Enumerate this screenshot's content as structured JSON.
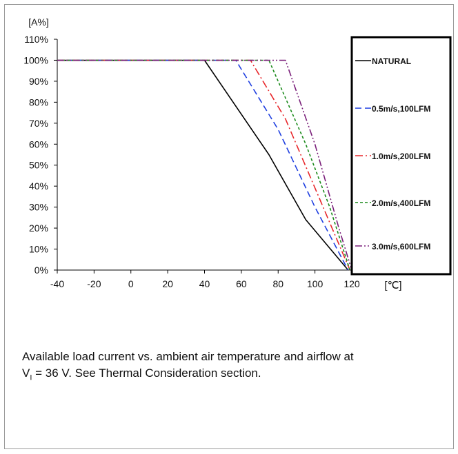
{
  "chart_data": {
    "type": "line",
    "title": "",
    "ylabel": "[A%]",
    "xlabel": "[℃]",
    "xlim": [
      -40,
      120
    ],
    "ylim": [
      0,
      110
    ],
    "x_ticks": [
      -40,
      -20,
      0,
      20,
      40,
      60,
      80,
      100,
      120
    ],
    "y_ticks": [
      "0%",
      "10%",
      "20%",
      "30%",
      "40%",
      "50%",
      "60%",
      "70%",
      "80%",
      "90%",
      "100%",
      "110%"
    ],
    "grid": false,
    "legend_position": "right",
    "series": [
      {
        "name": "NATURAL",
        "color": "#000000",
        "dash": "solid",
        "points": [
          [
            -40,
            100
          ],
          [
            40,
            100
          ],
          [
            75,
            55
          ],
          [
            95,
            24
          ],
          [
            118,
            0
          ]
        ]
      },
      {
        "name": "0.5m/s,100LFM",
        "color": "#1f3fe0",
        "dash": "dash",
        "points": [
          [
            -40,
            100
          ],
          [
            57,
            100
          ],
          [
            80,
            67
          ],
          [
            100,
            30
          ],
          [
            118,
            0
          ]
        ]
      },
      {
        "name": "1.0m/s,200LFM",
        "color": "#e8262a",
        "dash": "dashdot",
        "points": [
          [
            -40,
            100
          ],
          [
            65,
            100
          ],
          [
            84,
            72
          ],
          [
            103,
            33
          ],
          [
            119,
            0
          ]
        ]
      },
      {
        "name": "2.0m/s,400LFM",
        "color": "#1a8a1a",
        "dash": "dot",
        "points": [
          [
            -40,
            100
          ],
          [
            75,
            100
          ],
          [
            95,
            60
          ],
          [
            108,
            30
          ],
          [
            119,
            0
          ]
        ]
      },
      {
        "name": "3.0m/s,600LFM",
        "color": "#7a1f7a",
        "dash": "dashdotdot",
        "points": [
          [
            -40,
            100
          ],
          [
            84,
            100
          ],
          [
            100,
            60
          ],
          [
            113,
            20
          ],
          [
            120,
            0
          ]
        ]
      }
    ]
  },
  "caption": {
    "line1": "Available load current vs. ambient air temperature and airflow at",
    "line2_prefix": "V",
    "line2_sub": "I",
    "line2_suffix": " = 36 V. See Thermal Consideration section."
  }
}
